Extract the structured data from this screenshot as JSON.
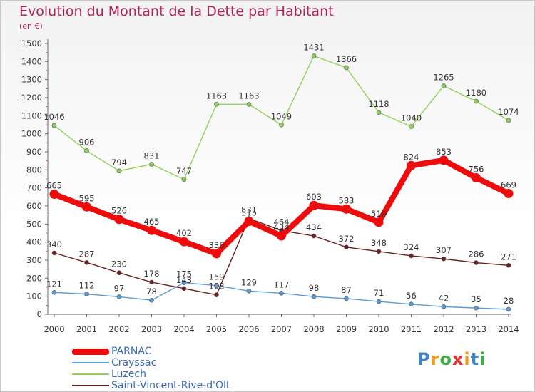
{
  "title": "Evolution du Montant de la Dette par Habitant",
  "unit": "(en €)",
  "logo": {
    "text": "Proxiti",
    "letters": [
      "P",
      "r",
      "o",
      "x",
      "i",
      "t",
      "i"
    ],
    "colors": [
      "#3d86c6",
      "#f39a1b",
      "#3fae49",
      "#e8312f",
      "#f39a1b",
      "#3d86c6",
      "#3fae49"
    ]
  },
  "chart_data": {
    "type": "line",
    "x": [
      "2000",
      "2001",
      "2002",
      "2003",
      "2004",
      "2005",
      "2006",
      "2007",
      "2008",
      "2009",
      "2010",
      "2011",
      "2012",
      "2013",
      "2014"
    ],
    "ylim": [
      0,
      1500
    ],
    "yticks": [
      "0",
      "100",
      "200",
      "300",
      "400",
      "500",
      "600",
      "700",
      "800",
      "900",
      "1000",
      "1100",
      "1200",
      "1300",
      "1400",
      "1500"
    ],
    "grid": false,
    "legend_position": "bottom-left",
    "series": [
      {
        "name": "PARNAC",
        "color": "#ee0b0b",
        "stroke": 8,
        "marker": 6.5,
        "values": [
          665,
          595,
          526,
          465,
          402,
          336,
          515,
          434,
          603,
          583,
          510,
          824,
          853,
          756,
          669
        ],
        "labels": [
          "665",
          "595",
          "526",
          "465",
          "402",
          "336",
          "515",
          "434",
          "603",
          "583",
          "510",
          "824",
          "853",
          "756",
          "669"
        ]
      },
      {
        "name": "Crayssac",
        "color": "#5b9bd5",
        "stroke": 1.4,
        "marker": 3,
        "values": [
          121,
          112,
          97,
          78,
          175,
          159,
          129,
          117,
          98,
          87,
          71,
          56,
          42,
          35,
          28
        ],
        "labels": [
          "121",
          "112",
          "97",
          "78",
          "175",
          "159",
          "129",
          "117",
          "98",
          "87",
          "71",
          "56",
          "42",
          "35",
          "28"
        ]
      },
      {
        "name": "Luzech",
        "color": "#8fd25a",
        "stroke": 1.4,
        "marker": 3,
        "values": [
          1046,
          906,
          794,
          831,
          747,
          1163,
          1163,
          1049,
          1431,
          1366,
          1118,
          1040,
          1265,
          1180,
          1074
        ],
        "labels": [
          "1046",
          "906",
          "794",
          "831",
          "747",
          "1163",
          "1163",
          "1049",
          "1431",
          "1366",
          "1118",
          "1040",
          "1265",
          "1180",
          "1074"
        ]
      },
      {
        "name": "Saint-Vincent-Rive-d'Olt",
        "color": "#6b1f1f",
        "stroke": 1.4,
        "marker": 3,
        "values": [
          340,
          287,
          230,
          178,
          143,
          108,
          531,
          464,
          434,
          372,
          348,
          324,
          307,
          286,
          271
        ],
        "labels": [
          "340",
          "287",
          "230",
          "178",
          "143",
          "108",
          "531",
          "464",
          "434",
          "372",
          "348",
          "324",
          "307",
          "286",
          "271"
        ]
      }
    ]
  }
}
